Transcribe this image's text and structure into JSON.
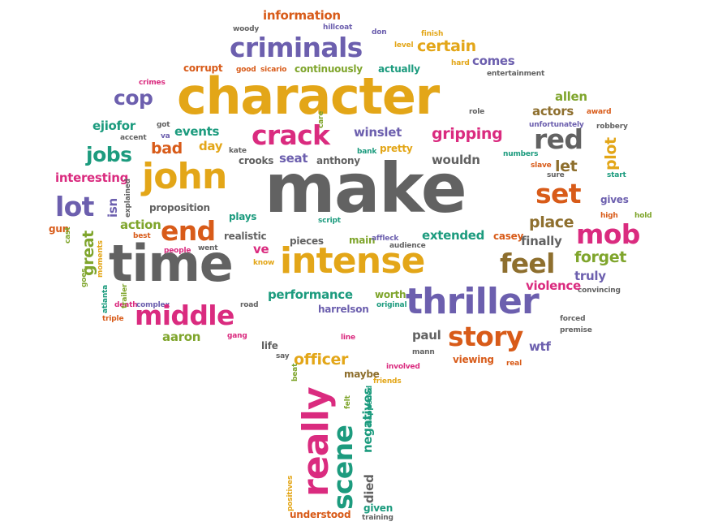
{
  "colors": {
    "gold": "#E3A618",
    "purple": "#6C5FAE",
    "gray": "#626262",
    "magenta": "#DA2B7F",
    "orange": "#D85B19",
    "green": "#7FA52C",
    "teal": "#1C9B7E",
    "brown": "#8E6F2E"
  },
  "shape": "tree",
  "words": [
    "information",
    "woody",
    "hillcoat",
    "don",
    "finish",
    "criminals",
    "level",
    "certain",
    "corrupt",
    "good",
    "sicario",
    "continuously",
    "actually",
    "hard",
    "comes",
    "entertainment",
    "crimes",
    "character",
    "cop",
    "allen",
    "actors",
    "award",
    "role",
    "ejiofor",
    "got",
    "accent",
    "va",
    "events",
    "care",
    "winslet",
    "crack",
    "gripping",
    "red",
    "unfortunately",
    "robbery",
    "day",
    "kate",
    "bank",
    "pretty",
    "jobs",
    "bad",
    "john",
    "crooks",
    "seat",
    "anthony",
    "wouldn",
    "plot",
    "numbers",
    "interesting",
    "slave",
    "sure",
    "start",
    "make",
    "let",
    "lot",
    "isn",
    "explained",
    "set",
    "gives",
    "proposition",
    "plays",
    "action",
    "best",
    "end",
    "script",
    "high",
    "hold",
    "gun",
    "cast",
    "went",
    "people",
    "realistic",
    "pieces",
    "main",
    "affleck",
    "audience",
    "extended",
    "place",
    "casey",
    "finally",
    "mob",
    "great",
    "moments",
    "time",
    "intense",
    "ve",
    "feel",
    "forget",
    "know",
    "truly",
    "convincing",
    "goes",
    "atlanta",
    "death",
    "complex",
    "middle",
    "road",
    "performance",
    "worth",
    "original",
    "thriller",
    "violence",
    "harrelson",
    "triple",
    "trailer",
    "forced",
    "gang",
    "aaron",
    "story",
    "premise",
    "paul",
    "mann",
    "wtf",
    "life",
    "line",
    "say",
    "officer",
    "viewing",
    "real",
    "involved",
    "maybe",
    "beat",
    "friends",
    "really",
    "felt",
    "negatives",
    "happened",
    "scene",
    "died",
    "positives",
    "given",
    "understood",
    "training"
  ]
}
